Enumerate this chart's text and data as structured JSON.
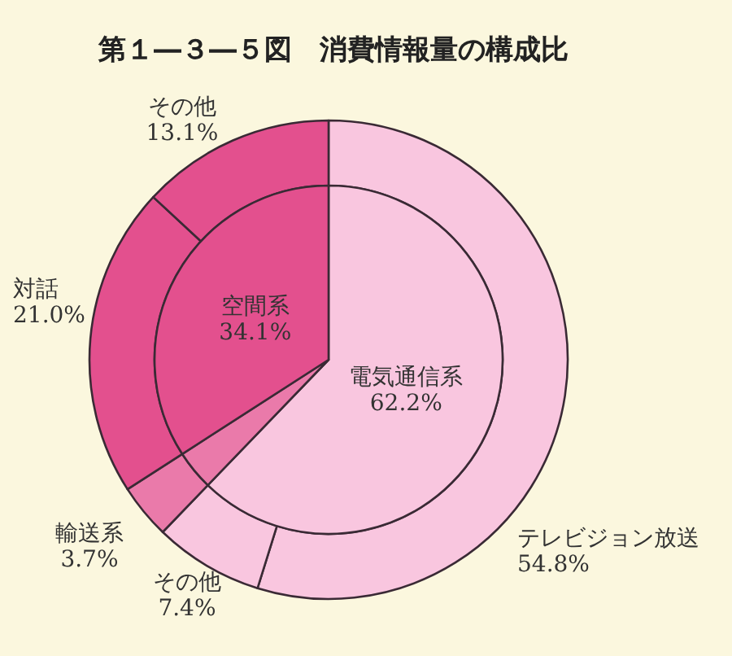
{
  "chart_data": [
    {
      "type": "donut",
      "title": "第１―３―５図　消費情報量の構成比",
      "categories": [
        "テレビジョン放送",
        "その他",
        "輸送系",
        "対話",
        "その他"
      ],
      "values": [
        54.8,
        7.4,
        3.7,
        21.0,
        13.1
      ],
      "value_labels": [
        "54.8%",
        "7.4%",
        "3.7%",
        "21.0%",
        "13.1%"
      ],
      "colors": [
        "#f9c6df",
        "#f9c6df",
        "#ea7aaa",
        "#e3508e",
        "#e3508e"
      ]
    },
    {
      "type": "pie",
      "categories": [
        "電気通信系",
        null,
        "空間系"
      ],
      "values": [
        62.2,
        3.7,
        34.1
      ],
      "value_labels": [
        "62.2%",
        null,
        "34.1%"
      ],
      "colors": [
        "#f9c6df",
        "#ea7aaa",
        "#e3508e"
      ]
    }
  ]
}
